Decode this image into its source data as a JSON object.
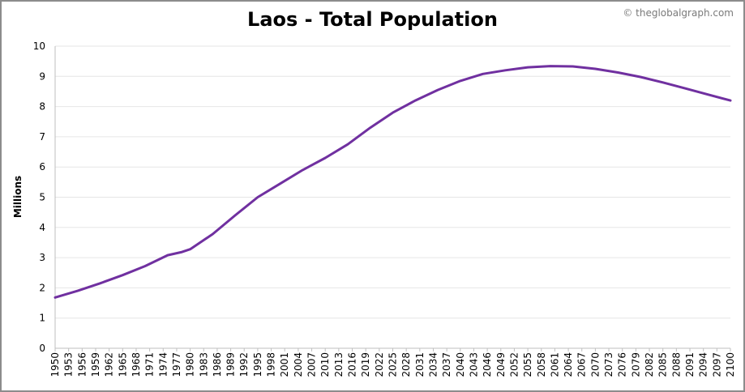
{
  "title": "Laos - Total Population",
  "credit": "© theglobalgraph.com",
  "chart_data": {
    "type": "line",
    "title": "Laos - Total Population",
    "xlabel": "",
    "ylabel": "Millions",
    "xlim": [
      1950,
      2100
    ],
    "ylim": [
      0,
      10
    ],
    "y_ticks": [
      0,
      1,
      2,
      3,
      4,
      5,
      6,
      7,
      8,
      9,
      10
    ],
    "x_ticks": [
      1950,
      1953,
      1956,
      1959,
      1962,
      1965,
      1968,
      1971,
      1974,
      1977,
      1980,
      1983,
      1986,
      1989,
      1992,
      1995,
      1998,
      2001,
      2004,
      2007,
      2010,
      2013,
      2016,
      2019,
      2022,
      2025,
      2028,
      2031,
      2034,
      2037,
      2040,
      2043,
      2046,
      2049,
      2052,
      2055,
      2058,
      2061,
      2064,
      2067,
      2070,
      2073,
      2076,
      2079,
      2082,
      2085,
      2088,
      2091,
      2094,
      2097,
      2100
    ],
    "grid": true,
    "line_color": "#7030a0",
    "series": [
      {
        "x": [
          1950,
          1955,
          1960,
          1965,
          1970,
          1975,
          1978,
          1980,
          1985,
          1990,
          1995,
          2000,
          2005,
          2010,
          2015,
          2020,
          2025,
          2030,
          2035,
          2040,
          2045,
          2050,
          2055,
          2060,
          2065,
          2070,
          2075,
          2080,
          2085,
          2090,
          2095,
          2100
        ],
        "values": [
          1.68,
          1.9,
          2.15,
          2.42,
          2.72,
          3.08,
          3.18,
          3.28,
          3.78,
          4.4,
          5.0,
          5.45,
          5.9,
          6.3,
          6.75,
          7.3,
          7.8,
          8.2,
          8.55,
          8.85,
          9.08,
          9.2,
          9.3,
          9.34,
          9.33,
          9.25,
          9.13,
          8.98,
          8.8,
          8.6,
          8.4,
          8.2
        ]
      }
    ]
  }
}
